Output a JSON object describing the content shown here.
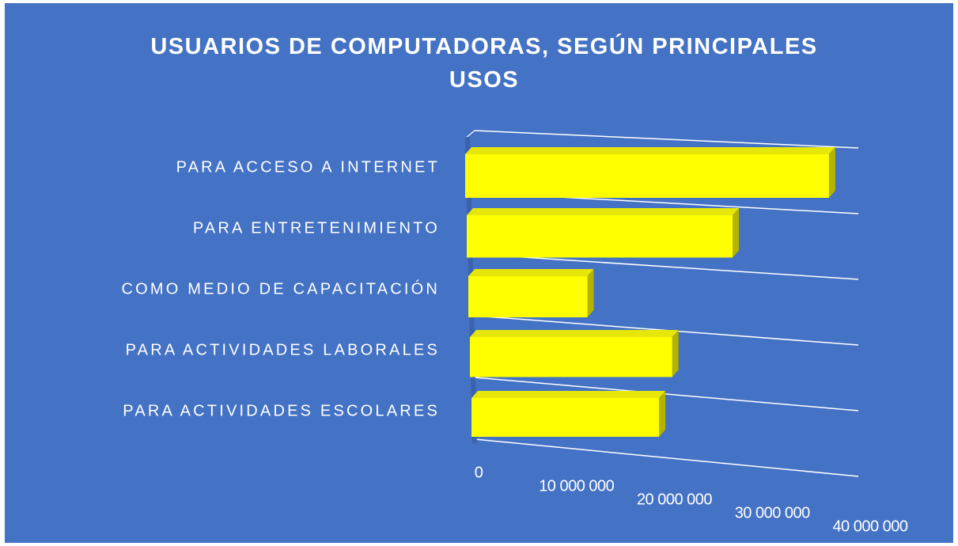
{
  "chart_data": {
    "type": "bar",
    "orientation": "horizontal",
    "title": "USUARIOS DE COMPUTADORAS, SEGÚN PRINCIPALES USOS",
    "categories": [
      "PARA ACCESO A INTERNET",
      "PARA ENTRETENIMIENTO",
      "COMO MEDIO DE CAPACITACIÓN",
      "PARA ACTIVIDADES LABORALES",
      "PARA ACTIVIDADES ESCOLARES"
    ],
    "values": [
      37000000,
      27000000,
      12000000,
      20500000,
      19000000
    ],
    "color": "#ffff00",
    "xlim": [
      0,
      40000000
    ],
    "xticks": [
      0,
      {
        "value": 10000000,
        "label": "10 000 000"
      },
      {
        "value": 20000000,
        "label": "20 000 000"
      },
      {
        "value": 30000000,
        "label": "30 000 000"
      },
      {
        "value": 40000000,
        "label": "40 000 000"
      }
    ]
  }
}
